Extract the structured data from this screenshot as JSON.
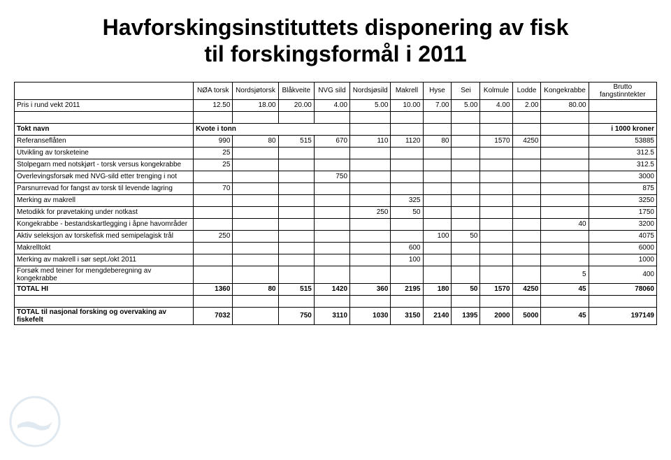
{
  "title_line1": "Havforskingsinstituttets disponering av fisk",
  "title_line2": "til forskingsformål i 2011",
  "columns": [
    "",
    "NØA torsk",
    "Nordsjøtorsk",
    "Blåkveite",
    "NVG sild",
    "Nordsjøsild",
    "Makrell",
    "Hyse",
    "Sei",
    "Kolmule",
    "Lodde",
    "Kongekrabbe",
    "Brutto fangstinntekter"
  ],
  "price_row": {
    "label": "Pris i rund vekt 2011",
    "values": [
      "12.50",
      "18.00",
      "20.00",
      "4.00",
      "5.00",
      "10.00",
      "7.00",
      "5.00",
      "4.00",
      "2.00",
      "80.00",
      ""
    ]
  },
  "section_header": {
    "label": "Tokt navn",
    "kvote": "Kvote i tonn",
    "right": "i 1000 kroner"
  },
  "rows": [
    {
      "label": "Referanseflåten",
      "v": [
        "990",
        "80",
        "515",
        "670",
        "110",
        "1120",
        "80",
        "",
        "1570",
        "4250",
        "",
        "53885"
      ]
    },
    {
      "label": "Utvikling av torsketeine",
      "v": [
        "25",
        "",
        "",
        "",
        "",
        "",
        "",
        "",
        "",
        "",
        "",
        "312.5"
      ]
    },
    {
      "label": "Stolpegarn med notskjørt - torsk versus kongekrabbe",
      "v": [
        "25",
        "",
        "",
        "",
        "",
        "",
        "",
        "",
        "",
        "",
        "",
        "312.5"
      ]
    },
    {
      "label": "Overlevingsforsøk med NVG-sild etter trenging i not",
      "v": [
        "",
        "",
        "",
        "750",
        "",
        "",
        "",
        "",
        "",
        "",
        "",
        "3000"
      ]
    },
    {
      "label": "Parsnurrevad for fangst av torsk til levende lagring",
      "v": [
        "70",
        "",
        "",
        "",
        "",
        "",
        "",
        "",
        "",
        "",
        "",
        "875"
      ]
    },
    {
      "label": "Merking av makrell",
      "v": [
        "",
        "",
        "",
        "",
        "",
        "325",
        "",
        "",
        "",
        "",
        "",
        "3250"
      ]
    },
    {
      "label": "Metodikk for prøvetaking under notkast",
      "v": [
        "",
        "",
        "",
        "",
        "250",
        "50",
        "",
        "",
        "",
        "",
        "",
        "1750"
      ]
    },
    {
      "label": "Kongekrabbe - bestandskartlegging i åpne havområder",
      "v": [
        "",
        "",
        "",
        "",
        "",
        "",
        "",
        "",
        "",
        "",
        "40",
        "3200"
      ]
    },
    {
      "label": "Aktiv seleksjon av torskefisk med semipelagisk trål",
      "v": [
        "250",
        "",
        "",
        "",
        "",
        "",
        "100",
        "50",
        "",
        "",
        "",
        "4075"
      ]
    },
    {
      "label": "Makrelltokt",
      "v": [
        "",
        "",
        "",
        "",
        "",
        "600",
        "",
        "",
        "",
        "",
        "",
        "6000"
      ]
    },
    {
      "label": "Merking av makrell i sør sept./okt 2011",
      "v": [
        "",
        "",
        "",
        "",
        "",
        "100",
        "",
        "",
        "",
        "",
        "",
        "1000"
      ]
    },
    {
      "label": "Forsøk med teiner for mengdeberegning av kongekrabbe",
      "v": [
        "",
        "",
        "",
        "",
        "",
        "",
        "",
        "",
        "",
        "",
        "5",
        "400"
      ]
    }
  ],
  "total_hi": {
    "label": "TOTAL HI",
    "v": [
      "1360",
      "80",
      "515",
      "1420",
      "360",
      "2195",
      "180",
      "50",
      "1570",
      "4250",
      "45",
      "78060"
    ]
  },
  "grand_total": {
    "label": "TOTAL til nasjonal forsking og overvaking av fiskefelt",
    "v": [
      "7032",
      "",
      "750",
      "3110",
      "1030",
      "3150",
      "2140",
      "1395",
      "2000",
      "5000",
      "45",
      "197149"
    ]
  },
  "col_widths": [
    "250px",
    "55px",
    "60px",
    "50px",
    "50px",
    "55px",
    "45px",
    "40px",
    "40px",
    "45px",
    "40px",
    "60px",
    "95px"
  ]
}
